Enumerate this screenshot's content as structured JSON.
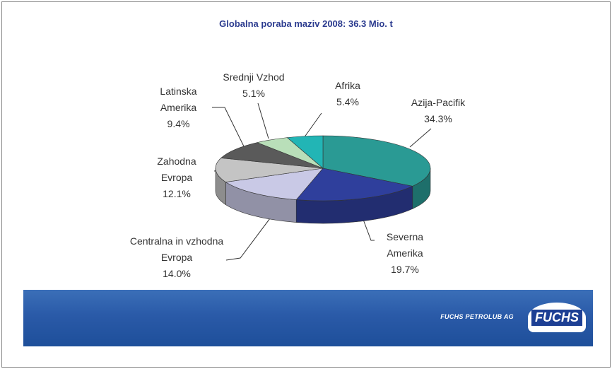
{
  "chart_data": {
    "type": "pie3d",
    "title": "Globalna poraba maziv 2008: 36.3 Mio. t",
    "categories": [
      "Azija-Pacifik",
      "Severna Amerika",
      "Centralna in vzhodna Evropa",
      "Zahodna Evropa",
      "Latinska Amerika",
      "Srednji Vzhod",
      "Afrika"
    ],
    "values": [
      34.3,
      19.7,
      14.0,
      12.1,
      9.4,
      5.1,
      5.4
    ],
    "value_labels": [
      "34.3%",
      "19.7%",
      "14.0%",
      "12.1%",
      "9.4%",
      "5.1%",
      "5.4%"
    ],
    "colors": [
      "#2a9a94",
      "#2f3f9c",
      "#c9c9e6",
      "#c4c4c4",
      "#5a5a5a",
      "#b9dfb9",
      "#22b5b5"
    ]
  },
  "footer": {
    "company": "FUCHS PETROLUB AG",
    "logo": "FUCHS"
  }
}
